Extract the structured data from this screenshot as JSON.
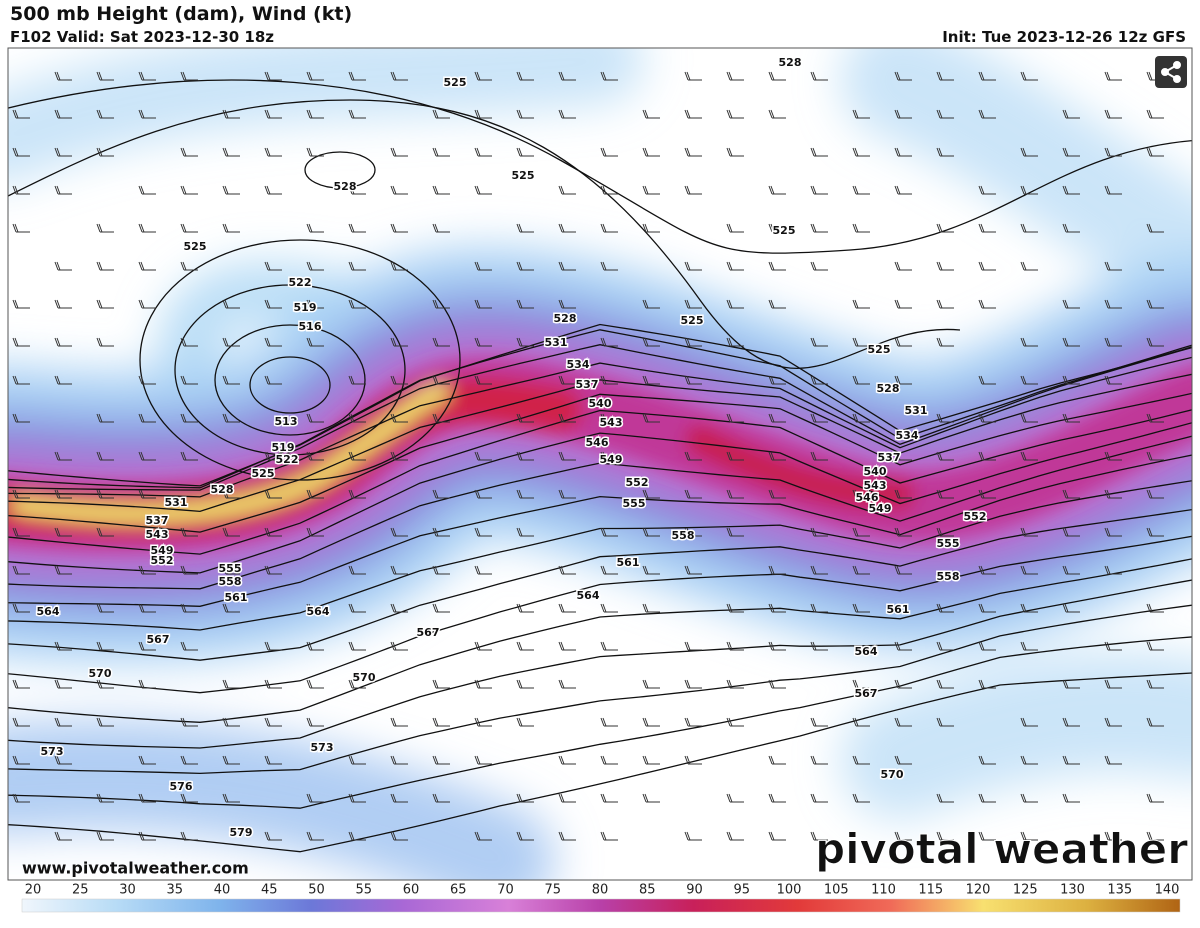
{
  "header": {
    "title": "500 mb Height (dam), Wind (kt)",
    "valid": "F102 Valid: Sat 2023-12-30 18z",
    "init": "Init: Tue 2023-12-26 12z GFS"
  },
  "map": {
    "contour_labels": [
      525,
      528,
      525,
      525,
      522,
      519,
      516,
      513,
      519,
      522,
      525,
      528,
      531,
      537,
      543,
      549,
      552,
      555,
      558,
      561,
      564,
      564,
      567,
      567,
      570,
      570,
      573,
      573,
      576,
      579,
      528,
      531,
      534,
      537,
      540,
      543,
      546,
      549,
      552,
      555,
      558,
      561,
      564,
      528,
      525,
      525,
      525,
      528,
      531,
      534,
      537,
      540,
      543,
      546,
      549,
      552,
      555,
      558,
      561,
      564,
      567,
      570
    ],
    "url": "www.pivotalweather.com",
    "watermark": "pivotal weather"
  },
  "colorbar": {
    "ticks": [
      20,
      25,
      30,
      35,
      40,
      45,
      50,
      55,
      60,
      65,
      70,
      75,
      80,
      85,
      90,
      95,
      100,
      105,
      110,
      115,
      120,
      125,
      130,
      135,
      140
    ]
  }
}
